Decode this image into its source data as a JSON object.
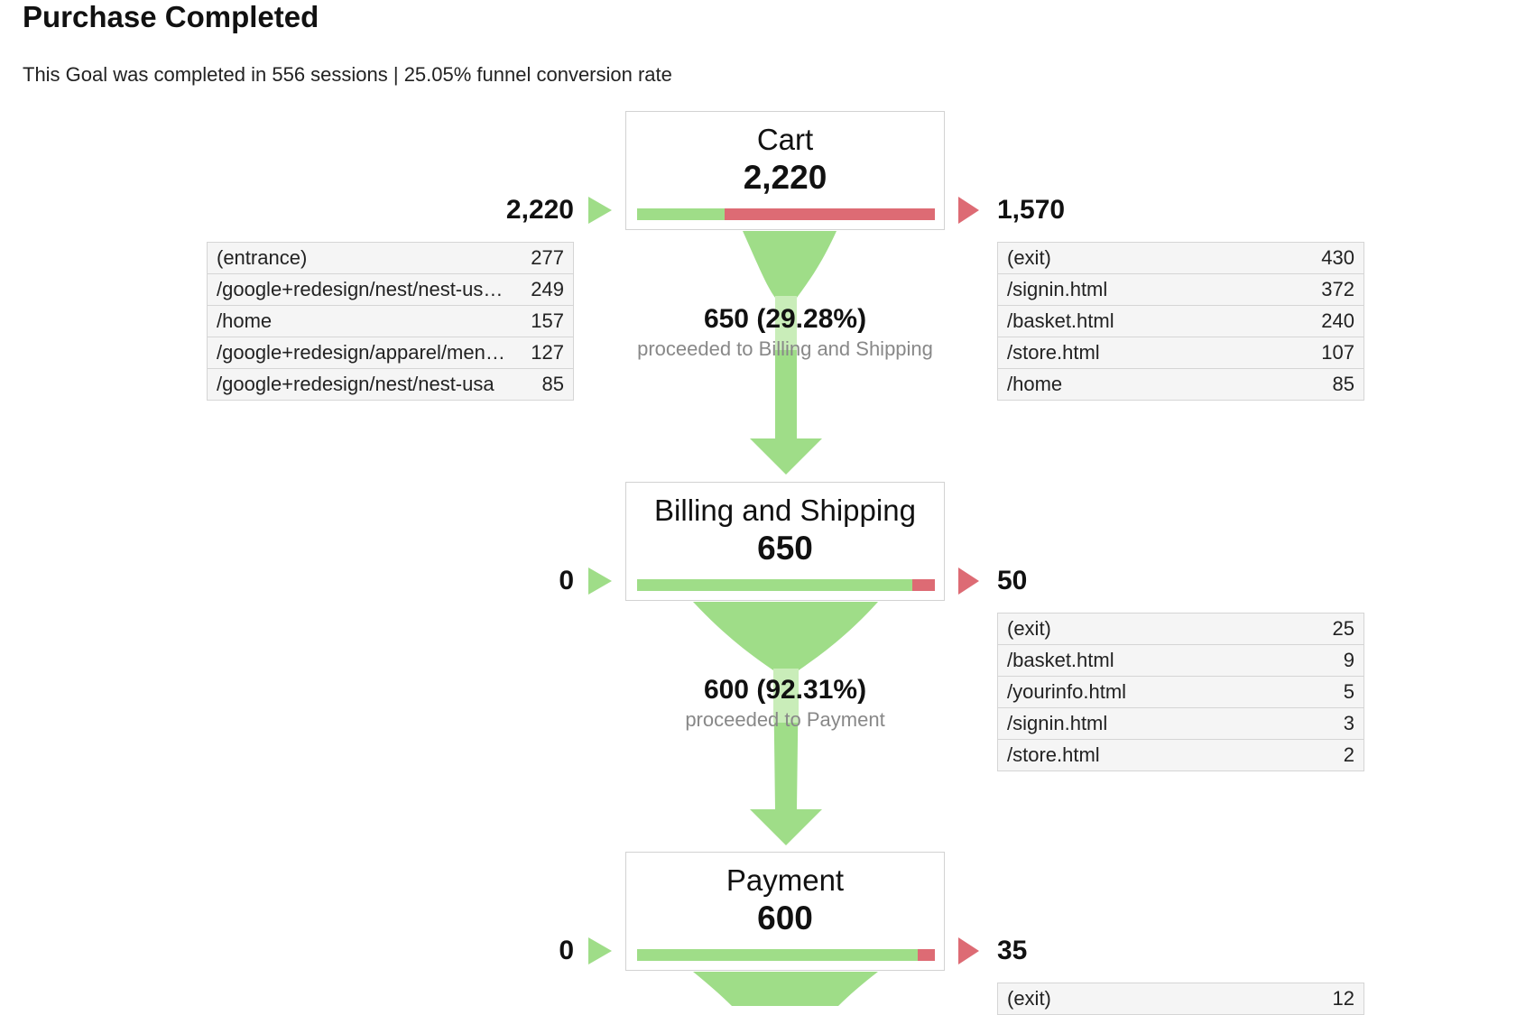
{
  "header": {
    "title": "Purchase Completed",
    "subtitle": "This Goal was completed in 556 sessions | 25.05% funnel conversion rate"
  },
  "steps": [
    {
      "name": "Cart",
      "count": "2,220",
      "bar_retained_fraction": 0.293,
      "entries_total": "2,220",
      "exits_total": "1,570",
      "entries": [
        {
          "path": "(entrance)",
          "value": "277"
        },
        {
          "path": "/google+redesign/nest/nest-us…",
          "value": "249"
        },
        {
          "path": "/home",
          "value": "157"
        },
        {
          "path": "/google+redesign/apparel/men…",
          "value": "127"
        },
        {
          "path": "/google+redesign/nest/nest-usa",
          "value": "85"
        }
      ],
      "exits": [
        {
          "path": "(exit)",
          "value": "430"
        },
        {
          "path": "/signin.html",
          "value": "372"
        },
        {
          "path": "/basket.html",
          "value": "240"
        },
        {
          "path": "/store.html",
          "value": "107"
        },
        {
          "path": "/home",
          "value": "85"
        }
      ],
      "proceeded_count": "650 (29.28%)",
      "proceeded_label": "proceeded to Billing and Shipping"
    },
    {
      "name": "Billing and Shipping",
      "count": "650",
      "bar_retained_fraction": 0.923,
      "entries_total": "0",
      "exits_total": "50",
      "exits": [
        {
          "path": "(exit)",
          "value": "25"
        },
        {
          "path": "/basket.html",
          "value": "9"
        },
        {
          "path": "/yourinfo.html",
          "value": "5"
        },
        {
          "path": "/signin.html",
          "value": "3"
        },
        {
          "path": "/store.html",
          "value": "2"
        }
      ],
      "proceeded_count": "600 (92.31%)",
      "proceeded_label": "proceeded to Payment"
    },
    {
      "name": "Payment",
      "count": "600",
      "bar_retained_fraction": 0.942,
      "entries_total": "0",
      "exits_total": "35",
      "exits": [
        {
          "path": "(exit)",
          "value": "12"
        }
      ]
    }
  ],
  "colors": {
    "retained_green": "#9fdd88",
    "exit_red": "#dd6b74"
  }
}
